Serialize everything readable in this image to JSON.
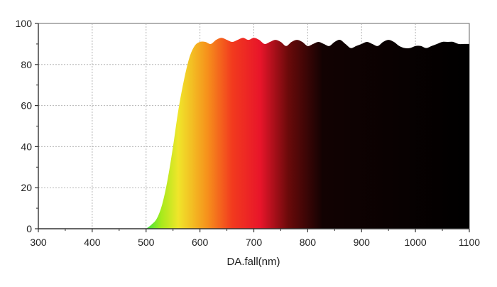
{
  "chart_data": {
    "type": "area",
    "xlabel": "DA.fall(nm)",
    "ylabel": "",
    "xlim": [
      300,
      1100
    ],
    "ylim": [
      0,
      100
    ],
    "x_ticks": [
      "300",
      "400",
      "500",
      "600",
      "700",
      "800",
      "900",
      "1000",
      "1100"
    ],
    "y_ticks": [
      "0",
      "20",
      "40",
      "60",
      "80",
      "100"
    ],
    "grid": true,
    "fill": "spectral gradient (green-yellow-red-black)",
    "series": [
      {
        "x": [
          500,
          510,
          520,
          530,
          540,
          550,
          560,
          570,
          580,
          590,
          600,
          610,
          620,
          630,
          640,
          650,
          660,
          670,
          680,
          690,
          700,
          710,
          720,
          730,
          740,
          750,
          760,
          770,
          780,
          790,
          800,
          810,
          820,
          830,
          840,
          850,
          860,
          870,
          880,
          890,
          900,
          910,
          920,
          930,
          940,
          950,
          960,
          970,
          980,
          990,
          1000,
          1010,
          1020,
          1030,
          1040,
          1050,
          1060,
          1070,
          1080,
          1090,
          1100
        ],
        "y": [
          0,
          2,
          5,
          12,
          24,
          40,
          58,
          72,
          83,
          89,
          91,
          91,
          90,
          92,
          93,
          92,
          91,
          92,
          93,
          92,
          93,
          92,
          90,
          91,
          92,
          91,
          89,
          91,
          92,
          91,
          89,
          90,
          91,
          90,
          89,
          91,
          92,
          90,
          88,
          89,
          90,
          91,
          90,
          89,
          91,
          92,
          91,
          89,
          88,
          88,
          89,
          89,
          88,
          89,
          90,
          91,
          91,
          91,
          90,
          90,
          90
        ]
      }
    ]
  }
}
